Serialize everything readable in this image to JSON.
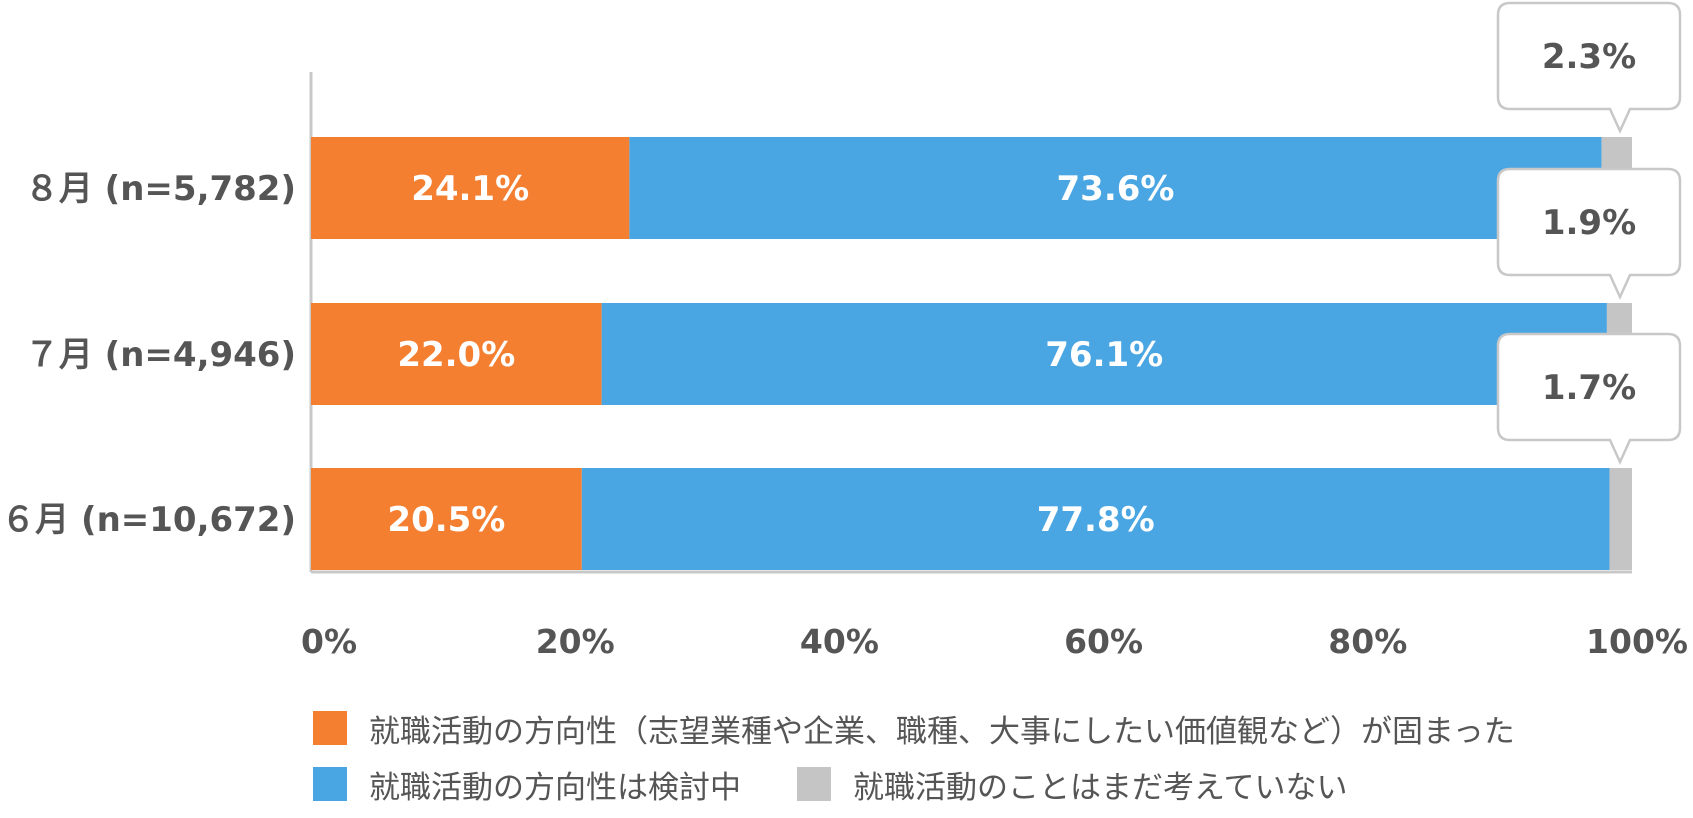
{
  "chart_data": {
    "type": "bar",
    "orientation": "horizontal",
    "stacked": true,
    "categories": [
      "８月 (n=5,782)",
      "７月 (n=4,946)",
      "６月 (n=10,672)"
    ],
    "series": [
      {
        "name": "就職活動の方向性（志望業種や企業、職種、大事にしたい価値観など）が固まった",
        "color": "#F47F31",
        "values": [
          24.1,
          22.0,
          20.5
        ],
        "labels": [
          "24.1%",
          "22.0%",
          "20.5%"
        ]
      },
      {
        "name": "就職活動の方向性は検討中",
        "color": "#4AA6E2",
        "values": [
          73.6,
          76.1,
          77.8
        ],
        "labels": [
          "73.6%",
          "76.1%",
          "77.8%"
        ]
      },
      {
        "name": "就職活動のことはまだ考えていない",
        "color": "#C5C5C5",
        "values": [
          2.3,
          1.9,
          1.7
        ],
        "labels": [
          "2.3%",
          "1.9%",
          "1.7%"
        ]
      }
    ],
    "xlim": [
      0,
      100
    ],
    "x_ticks": [
      "0%",
      "20%",
      "40%",
      "60%",
      "80%",
      "100%"
    ],
    "grid": false,
    "legend_position": "bottom"
  },
  "legend": {
    "item1": "就職活動の方向性（志望業種や企業、職種、大事にしたい価値観など）が固まった",
    "item2": "就職活動の方向性は検討中",
    "item3": "就職活動のことはまだ考えていない"
  },
  "colors": {
    "fixed": "#F47F31",
    "considering": "#4AA6E2",
    "not_yet": "#C5C5C5",
    "text": "#555555",
    "axis": "#C8C8C8"
  }
}
